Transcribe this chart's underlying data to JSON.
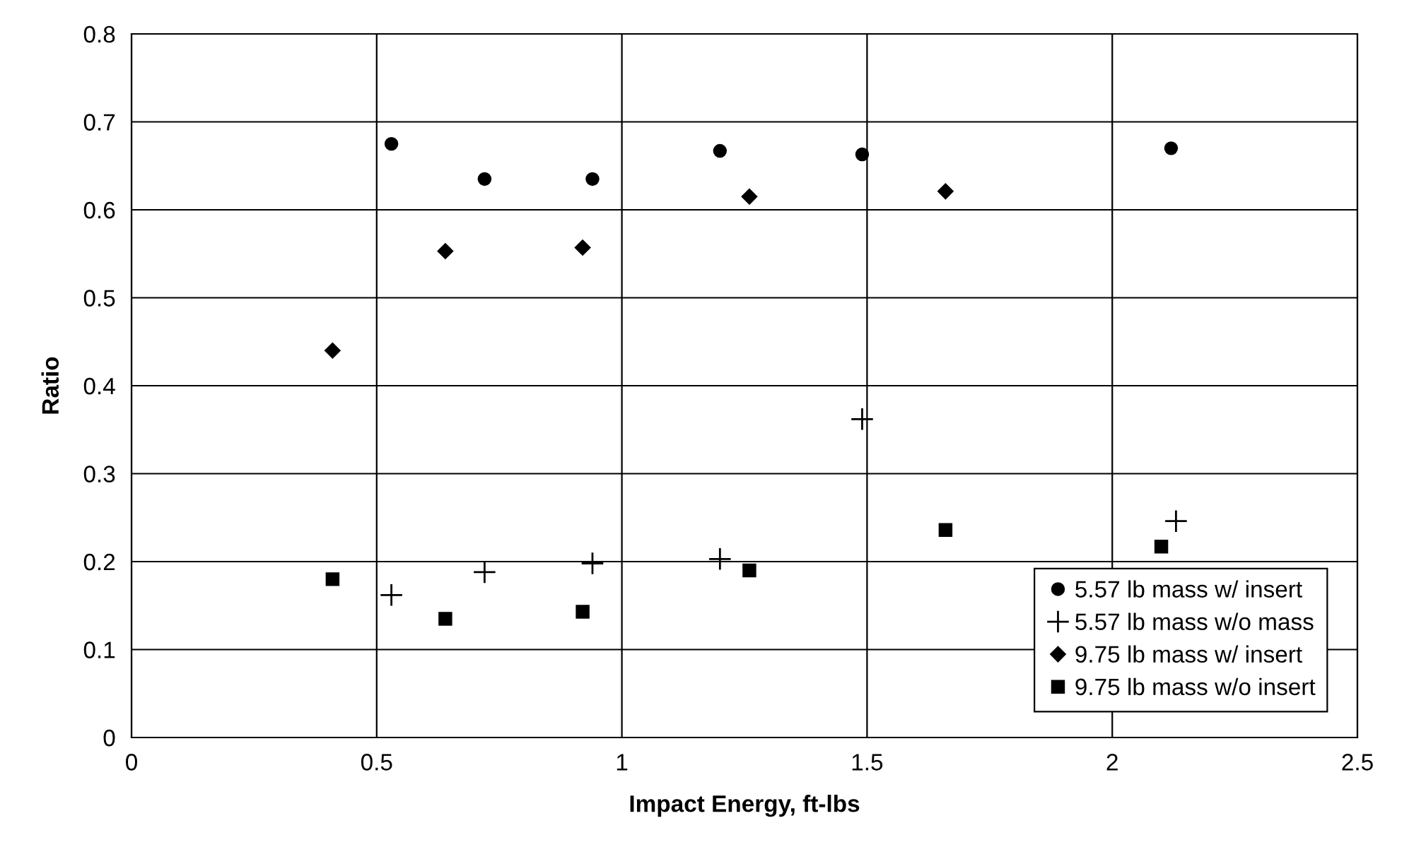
{
  "chart_data": {
    "type": "scatter",
    "xlabel": "Impact Energy, ft-lbs",
    "ylabel": "Ratio",
    "xlim": [
      0,
      2.5
    ],
    "xticks": [
      0,
      0.5,
      1,
      1.5,
      2,
      2.5
    ],
    "ylim": [
      0,
      0.8
    ],
    "yticks": [
      0,
      0.1,
      0.2,
      0.3,
      0.4,
      0.5,
      0.6,
      0.7,
      0.8
    ],
    "grid": true,
    "legend": "bottom right",
    "series": [
      {
        "name": "5.57 lb mass w/ insert",
        "color": "#000000",
        "marker": "circle",
        "x": [
          0.53,
          0.72,
          0.94,
          1.2,
          1.49,
          2.12
        ],
        "values": [
          0.675,
          0.635,
          0.635,
          0.667,
          0.663,
          0.67
        ]
      },
      {
        "name": "5.57 lb mass w/o mass",
        "color": "#000000",
        "marker": "cross",
        "x": [
          0.53,
          0.72,
          0.94,
          1.2,
          1.49,
          2.13
        ],
        "values": [
          0.162,
          0.188,
          0.198,
          0.203,
          0.362,
          0.246
        ]
      },
      {
        "name": "9.75 lb mass w/ insert",
        "color": "#000000",
        "marker": "diamond",
        "x": [
          0.41,
          0.64,
          0.92,
          1.26,
          1.66
        ],
        "values": [
          0.44,
          0.553,
          0.557,
          0.615,
          0.621
        ]
      },
      {
        "name": "9.75 lb mass w/o insert",
        "color": "#000000",
        "marker": "square",
        "x": [
          0.41,
          0.64,
          0.92,
          1.26,
          1.66,
          2.1
        ],
        "values": [
          0.18,
          0.135,
          0.143,
          0.19,
          0.236,
          0.217
        ]
      }
    ]
  }
}
